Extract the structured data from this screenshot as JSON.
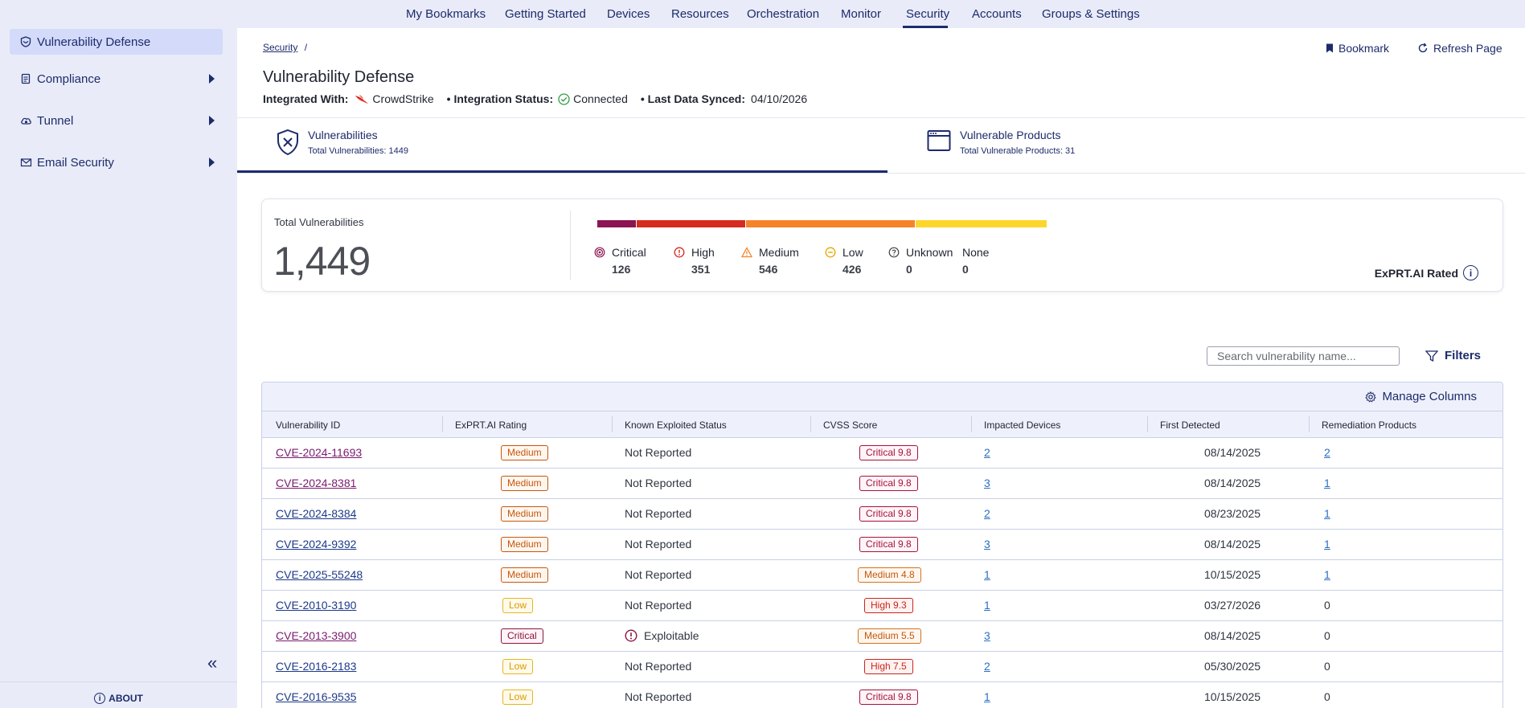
{
  "sidebar": {
    "items": [
      {
        "label": "Vulnerability Defense",
        "icon": "shield-icon",
        "active": true
      },
      {
        "label": "Compliance",
        "icon": "clipboard-icon"
      },
      {
        "label": "Tunnel",
        "icon": "cloud-lock-icon"
      },
      {
        "label": "Email Security",
        "icon": "envelope-icon"
      }
    ],
    "about_label": "ABOUT"
  },
  "topnav": {
    "items": [
      "My Bookmarks",
      "Getting Started",
      "Devices",
      "Resources",
      "Orchestration",
      "Monitor",
      "Security",
      "Accounts",
      "Groups & Settings"
    ],
    "active": "Security"
  },
  "header": {
    "breadcrumb": "Security",
    "breadcrumb_sep": "/",
    "title": "Vulnerability Defense",
    "integrated_label": "Integrated With:",
    "integrated_value": "CrowdStrike",
    "status_label": "• Integration Status:",
    "status_value": "Connected",
    "synced_label": "• Last Data Synced:",
    "synced_value": "04/10/2026",
    "bookmark_label": "Bookmark",
    "refresh_label": "Refresh Page"
  },
  "tabs": [
    {
      "label": "Vulnerabilities",
      "sub": "Total Vulnerabilities: 1449",
      "active": true
    },
    {
      "label": "Vulnerable Products",
      "sub": "Total Vulnerable Products: 31"
    }
  ],
  "summary": {
    "title": "Total Vulnerabilities",
    "total": "1,449",
    "severities": [
      {
        "label": "Critical",
        "count": "126",
        "value": 126,
        "color": "#8c1452"
      },
      {
        "label": "High",
        "count": "351",
        "value": 351,
        "color": "#d62b1f"
      },
      {
        "label": "Medium",
        "count": "546",
        "value": 546,
        "color": "#f5832a"
      },
      {
        "label": "Low",
        "count": "426",
        "value": 426,
        "color": "#fcd62a"
      },
      {
        "label": "Unknown",
        "count": "0",
        "value": 0,
        "color": "#444"
      },
      {
        "label": "None",
        "count": "0",
        "value": 0,
        "color": "#444"
      }
    ],
    "rated_label": "ExPRT.AI Rated"
  },
  "search": {
    "placeholder": "Search vulnerability name..."
  },
  "filters_label": "Filters",
  "manage_columns_label": "Manage Columns",
  "table": {
    "columns": [
      "Vulnerability ID",
      "ExPRT.AI Rating",
      "Known Exploited Status",
      "CVSS Score",
      "Impacted Devices",
      "First Detected",
      "Remediation Products"
    ],
    "rows": [
      {
        "id": "CVE-2024-11693",
        "visited": true,
        "rating": "Medium",
        "exploited": "Not Reported",
        "cvss": "Critical 9.8",
        "cvss_level": "critical",
        "devices": "2",
        "first": "08/14/2025",
        "remediation": "2",
        "rem_link": true
      },
      {
        "id": "CVE-2024-8381",
        "visited": true,
        "rating": "Medium",
        "exploited": "Not Reported",
        "cvss": "Critical 9.8",
        "cvss_level": "critical",
        "devices": "3",
        "first": "08/14/2025",
        "remediation": "1",
        "rem_link": true
      },
      {
        "id": "CVE-2024-8384",
        "visited": false,
        "rating": "Medium",
        "exploited": "Not Reported",
        "cvss": "Critical 9.8",
        "cvss_level": "critical",
        "devices": "2",
        "first": "08/23/2025",
        "remediation": "1",
        "rem_link": true
      },
      {
        "id": "CVE-2024-9392",
        "visited": false,
        "rating": "Medium",
        "exploited": "Not Reported",
        "cvss": "Critical 9.8",
        "cvss_level": "critical",
        "devices": "3",
        "first": "08/14/2025",
        "remediation": "1",
        "rem_link": true
      },
      {
        "id": "CVE-2025-55248",
        "visited": false,
        "rating": "Medium",
        "exploited": "Not Reported",
        "cvss": "Medium 4.8",
        "cvss_level": "medium",
        "devices": "1",
        "first": "10/15/2025",
        "remediation": "1",
        "rem_link": true
      },
      {
        "id": "CVE-2010-3190",
        "visited": false,
        "rating": "Low",
        "exploited": "Not Reported",
        "cvss": "High 9.3",
        "cvss_level": "high",
        "devices": "1",
        "first": "03/27/2026",
        "remediation": "0",
        "rem_link": false
      },
      {
        "id": "CVE-2013-3900",
        "visited": true,
        "rating": "Critical",
        "exploited": "Exploitable",
        "exploitable": true,
        "cvss": "Medium 5.5",
        "cvss_level": "medium",
        "devices": "3",
        "first": "08/14/2025",
        "remediation": "0",
        "rem_link": false
      },
      {
        "id": "CVE-2016-2183",
        "visited": false,
        "rating": "Low",
        "exploited": "Not Reported",
        "cvss": "High 7.5",
        "cvss_level": "high",
        "devices": "2",
        "first": "05/30/2025",
        "remediation": "0",
        "rem_link": false
      },
      {
        "id": "CVE-2016-9535",
        "visited": false,
        "rating": "Low",
        "exploited": "Not Reported",
        "cvss": "Critical 9.8",
        "cvss_level": "critical",
        "devices": "1",
        "first": "10/15/2025",
        "remediation": "0",
        "rem_link": false
      }
    ]
  }
}
